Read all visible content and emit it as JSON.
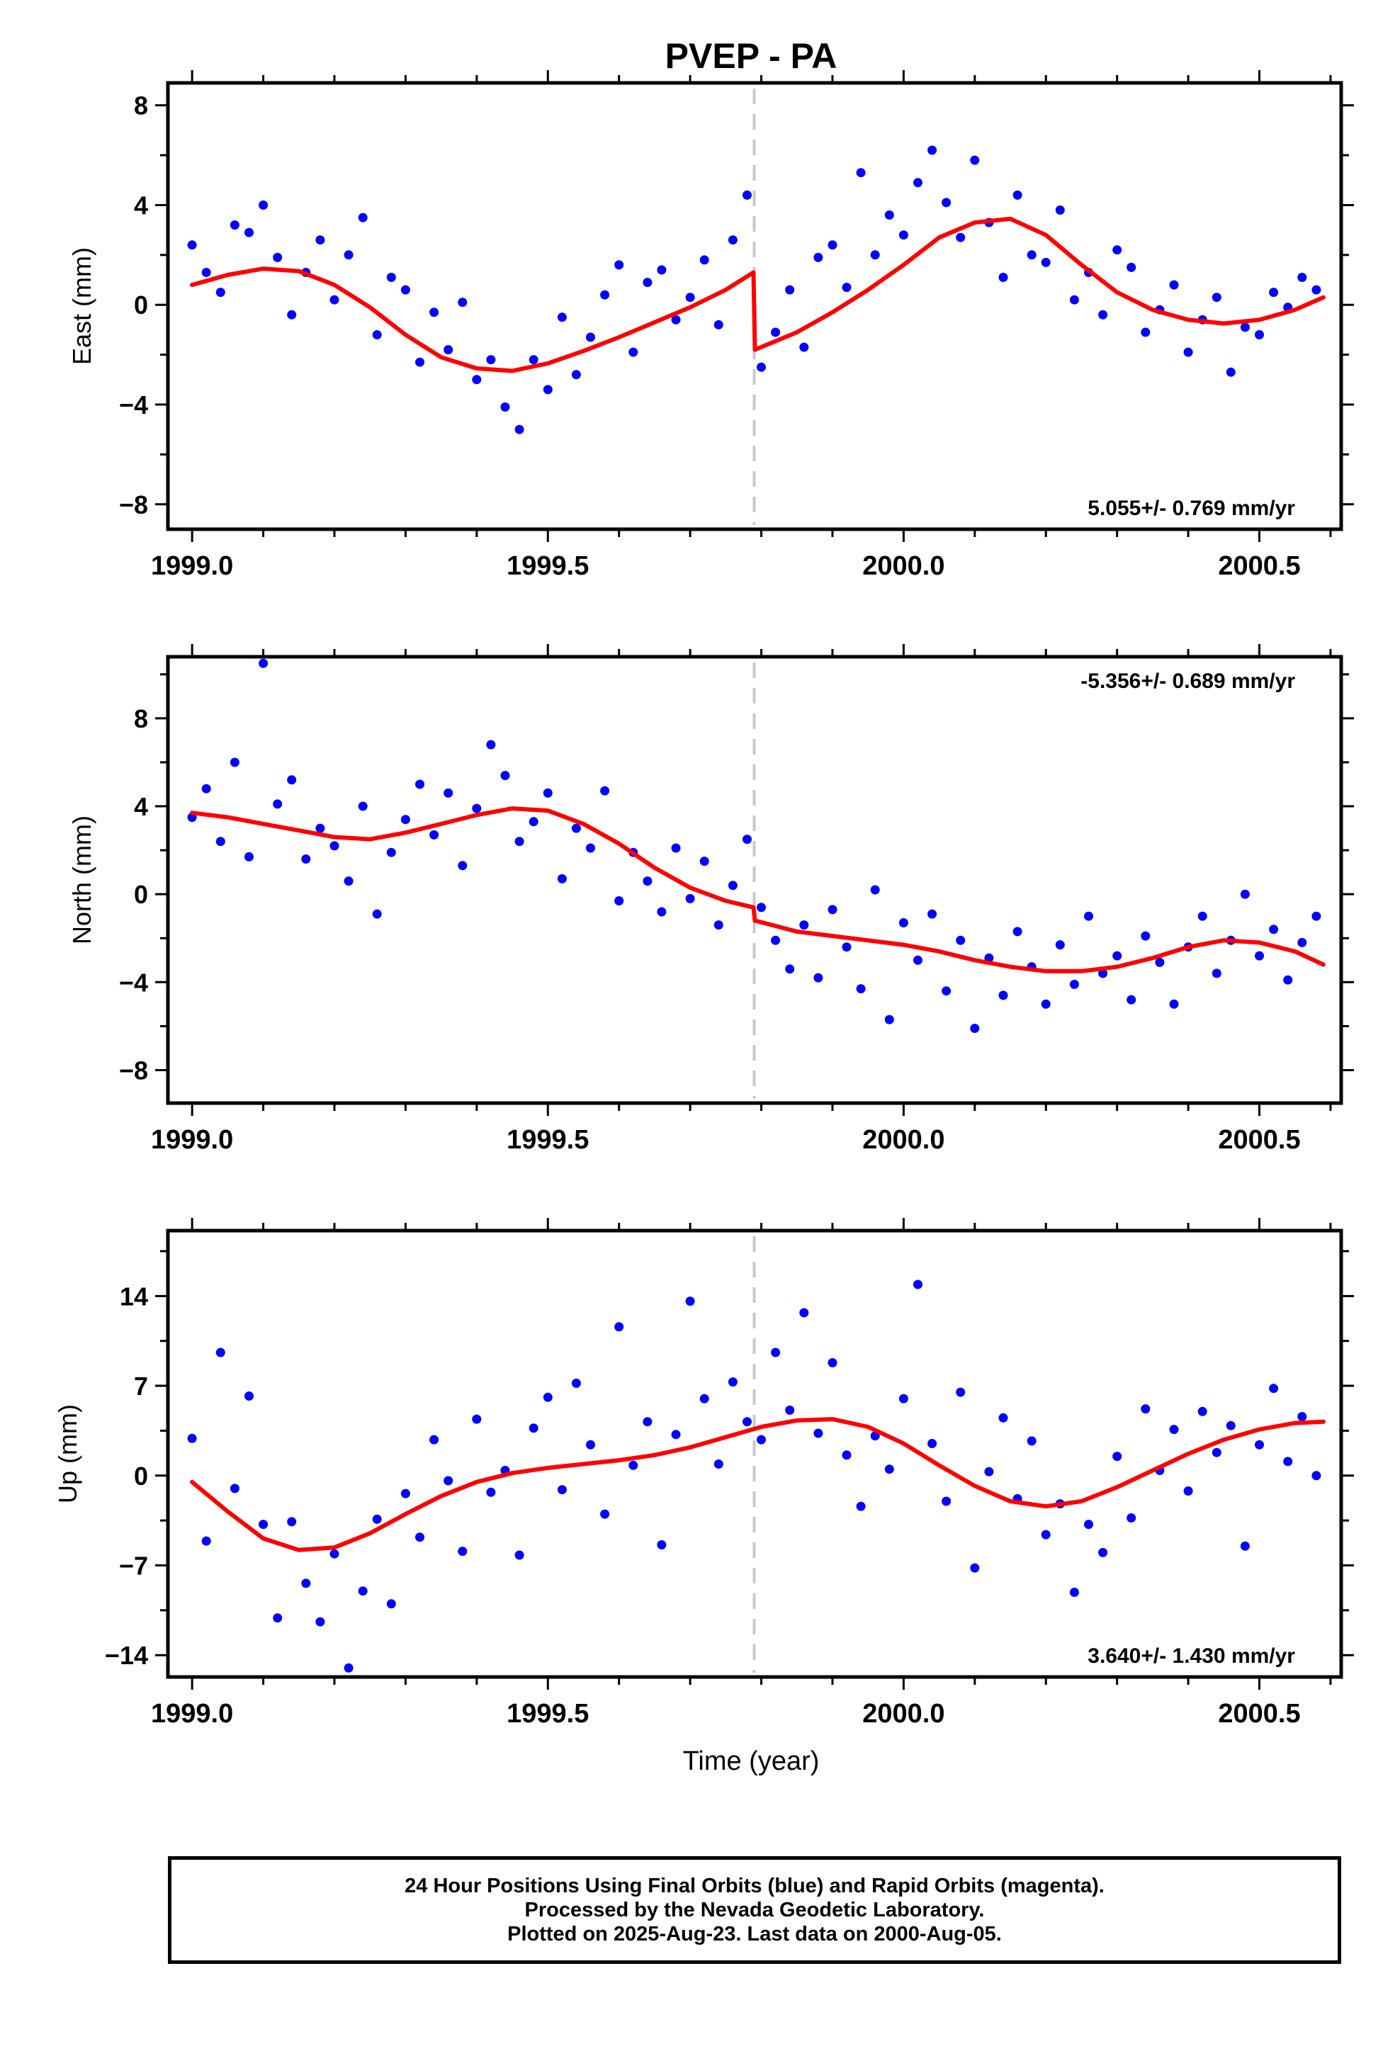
{
  "title": "PVEP - PA",
  "colors": {
    "data": "#0000ff",
    "model": "#ff0000",
    "offset_line": "#c8c8c8",
    "axis": "#000000"
  },
  "x_axis": {
    "label": "Time (year)",
    "range": [
      1998.966,
      2000.615
    ],
    "ticks": [
      1999.0,
      1999.5,
      2000.0,
      2000.5
    ],
    "tick_labels": [
      "1999.0",
      "1999.5",
      "2000.0",
      "2000.5"
    ]
  },
  "offset_epoch": 1999.79,
  "caption": {
    "line1": "24 Hour Positions Using Final Orbits (blue) and Rapid Orbits (magenta).",
    "line2": "Processed by the Nevada Geodetic Laboratory.",
    "line3": "Plotted on 2025-Aug-23. Last data on 2000-Aug-05."
  },
  "chart_data": [
    {
      "type": "scatter",
      "ylabel": "East (mm)",
      "ylim": [
        -9.0,
        8.9
      ],
      "yticks": [
        -8,
        -4,
        0,
        4,
        8
      ],
      "ytick_labels": [
        "−8",
        "−4",
        "0",
        "4",
        "8"
      ],
      "rate_label": "5.055+/- 0.769 mm/yr",
      "rate_position": "bottom-right",
      "grid": false,
      "series": [
        {
          "role": "data",
          "x": [
            1999.0,
            1999.02,
            1999.04,
            1999.06,
            1999.08,
            1999.1,
            1999.12,
            1999.14,
            1999.16,
            1999.18,
            1999.2,
            1999.22,
            1999.24,
            1999.26,
            1999.28,
            1999.3,
            1999.32,
            1999.34,
            1999.36,
            1999.38,
            1999.4,
            1999.42,
            1999.44,
            1999.46,
            1999.48,
            1999.5,
            1999.52,
            1999.54,
            1999.56,
            1999.58,
            1999.6,
            1999.62,
            1999.64,
            1999.66,
            1999.68,
            1999.7,
            1999.72,
            1999.74,
            1999.76,
            1999.78,
            1999.8,
            1999.82,
            1999.84,
            1999.86,
            1999.88,
            1999.9,
            1999.92,
            1999.94,
            1999.96,
            1999.98,
            2000.0,
            2000.02,
            2000.04,
            2000.06,
            2000.08,
            2000.1,
            2000.12,
            2000.14,
            2000.16,
            2000.18,
            2000.2,
            2000.22,
            2000.24,
            2000.26,
            2000.28,
            2000.3,
            2000.32,
            2000.34,
            2000.36,
            2000.38,
            2000.4,
            2000.42,
            2000.44,
            2000.46,
            2000.48,
            2000.5,
            2000.52,
            2000.54,
            2000.56,
            2000.58
          ],
          "y": [
            2.4,
            1.3,
            0.5,
            3.2,
            2.9,
            4.0,
            1.9,
            -0.4,
            1.3,
            2.6,
            0.2,
            2.0,
            3.5,
            -1.2,
            1.1,
            0.6,
            -2.3,
            -0.3,
            -1.8,
            0.1,
            -3.0,
            -2.2,
            -4.1,
            -5.0,
            -2.2,
            -3.4,
            -0.5,
            -2.8,
            -1.3,
            0.4,
            1.6,
            -1.9,
            0.9,
            1.4,
            -0.6,
            0.3,
            1.8,
            -0.8,
            2.6,
            4.4,
            -2.5,
            -1.1,
            0.6,
            -1.7,
            1.9,
            2.4,
            0.7,
            5.3,
            2.0,
            3.6,
            2.8,
            4.9,
            6.2,
            4.1,
            2.7,
            5.8,
            3.3,
            1.1,
            4.4,
            2.0,
            1.7,
            3.8,
            0.2,
            1.3,
            -0.4,
            2.2,
            1.5,
            -1.1,
            -0.2,
            0.8,
            -1.9,
            -0.6,
            0.3,
            -2.7,
            -0.9,
            -1.2,
            0.5,
            -0.1,
            1.1,
            0.6
          ]
        },
        {
          "role": "model",
          "x": [
            1999.0,
            1999.05,
            1999.1,
            1999.15,
            1999.2,
            1999.25,
            1999.3,
            1999.35,
            1999.4,
            1999.45,
            1999.5,
            1999.55,
            1999.6,
            1999.65,
            1999.7,
            1999.75,
            1999.789,
            1999.791,
            1999.85,
            1999.9,
            1999.95,
            2000.0,
            2000.05,
            2000.1,
            2000.15,
            2000.2,
            2000.25,
            2000.3,
            2000.35,
            2000.4,
            2000.45,
            2000.5,
            2000.55,
            2000.59
          ],
          "y": [
            0.8,
            1.2,
            1.45,
            1.35,
            0.8,
            -0.1,
            -1.2,
            -2.1,
            -2.55,
            -2.65,
            -2.35,
            -1.85,
            -1.3,
            -0.7,
            -0.1,
            0.6,
            1.3,
            -1.8,
            -1.1,
            -0.3,
            0.6,
            1.6,
            2.7,
            3.3,
            3.45,
            2.8,
            1.6,
            0.5,
            -0.2,
            -0.6,
            -0.75,
            -0.6,
            -0.2,
            0.3
          ]
        }
      ]
    },
    {
      "type": "scatter",
      "ylabel": "North (mm)",
      "ylim": [
        -9.5,
        10.8
      ],
      "yticks": [
        -8,
        -4,
        0,
        4,
        8
      ],
      "ytick_labels": [
        "−8",
        "−4",
        "0",
        "4",
        "8"
      ],
      "rate_label": "-5.356+/- 0.689 mm/yr",
      "rate_position": "top-right",
      "grid": false,
      "series": [
        {
          "role": "data",
          "x": [
            1999.0,
            1999.02,
            1999.04,
            1999.06,
            1999.08,
            1999.1,
            1999.12,
            1999.14,
            1999.16,
            1999.18,
            1999.2,
            1999.22,
            1999.24,
            1999.26,
            1999.28,
            1999.3,
            1999.32,
            1999.34,
            1999.36,
            1999.38,
            1999.4,
            1999.42,
            1999.44,
            1999.46,
            1999.48,
            1999.5,
            1999.52,
            1999.54,
            1999.56,
            1999.58,
            1999.6,
            1999.62,
            1999.64,
            1999.66,
            1999.68,
            1999.7,
            1999.72,
            1999.74,
            1999.76,
            1999.78,
            1999.8,
            1999.82,
            1999.84,
            1999.86,
            1999.88,
            1999.9,
            1999.92,
            1999.94,
            1999.96,
            1999.98,
            2000.0,
            2000.02,
            2000.04,
            2000.06,
            2000.08,
            2000.1,
            2000.12,
            2000.14,
            2000.16,
            2000.18,
            2000.2,
            2000.22,
            2000.24,
            2000.26,
            2000.28,
            2000.3,
            2000.32,
            2000.34,
            2000.36,
            2000.38,
            2000.4,
            2000.42,
            2000.44,
            2000.46,
            2000.48,
            2000.5,
            2000.52,
            2000.54,
            2000.56,
            2000.58
          ],
          "y": [
            3.5,
            4.8,
            2.4,
            6.0,
            1.7,
            10.5,
            4.1,
            5.2,
            1.6,
            3.0,
            2.2,
            0.6,
            4.0,
            -0.9,
            1.9,
            3.4,
            5.0,
            2.7,
            4.6,
            1.3,
            3.9,
            6.8,
            5.4,
            2.4,
            3.3,
            4.6,
            0.7,
            3.0,
            2.1,
            4.7,
            -0.3,
            1.9,
            0.6,
            -0.8,
            2.1,
            -0.2,
            1.5,
            -1.4,
            0.4,
            2.5,
            -0.6,
            -2.1,
            -3.4,
            -1.4,
            -3.8,
            -0.7,
            -2.4,
            -4.3,
            0.2,
            -5.7,
            -1.3,
            -3.0,
            -0.9,
            -4.4,
            -2.1,
            -6.1,
            -2.9,
            -4.6,
            -1.7,
            -3.3,
            -5.0,
            -2.3,
            -4.1,
            -1.0,
            -3.6,
            -2.8,
            -4.8,
            -1.9,
            -3.1,
            -5.0,
            -2.4,
            -1.0,
            -3.6,
            -2.1,
            0.0,
            -2.8,
            -1.6,
            -3.9,
            -2.2,
            -1.0
          ]
        },
        {
          "role": "model",
          "x": [
            1999.0,
            1999.05,
            1999.1,
            1999.15,
            1999.2,
            1999.25,
            1999.3,
            1999.35,
            1999.4,
            1999.45,
            1999.5,
            1999.55,
            1999.6,
            1999.65,
            1999.7,
            1999.75,
            1999.789,
            1999.791,
            1999.85,
            1999.9,
            1999.95,
            2000.0,
            2000.05,
            2000.1,
            2000.15,
            2000.2,
            2000.25,
            2000.3,
            2000.35,
            2000.4,
            2000.45,
            2000.5,
            2000.55,
            2000.59
          ],
          "y": [
            3.7,
            3.5,
            3.2,
            2.9,
            2.6,
            2.5,
            2.8,
            3.2,
            3.6,
            3.9,
            3.8,
            3.2,
            2.3,
            1.2,
            0.3,
            -0.3,
            -0.6,
            -1.2,
            -1.7,
            -1.9,
            -2.1,
            -2.3,
            -2.6,
            -3.0,
            -3.3,
            -3.5,
            -3.5,
            -3.3,
            -2.9,
            -2.4,
            -2.1,
            -2.2,
            -2.6,
            -3.2
          ]
        }
      ]
    },
    {
      "type": "scatter",
      "ylabel": "Up (mm)",
      "ylim": [
        -15.7,
        19.1
      ],
      "yticks": [
        -14,
        -7,
        0,
        7,
        14
      ],
      "ytick_labels": [
        "−14",
        "−7",
        "0",
        "7",
        "14"
      ],
      "rate_label": "3.640+/- 1.430 mm/yr",
      "rate_position": "bottom-right",
      "grid": false,
      "series": [
        {
          "role": "data",
          "x": [
            1999.0,
            1999.02,
            1999.04,
            1999.06,
            1999.08,
            1999.1,
            1999.12,
            1999.14,
            1999.16,
            1999.18,
            1999.2,
            1999.22,
            1999.24,
            1999.26,
            1999.28,
            1999.3,
            1999.32,
            1999.34,
            1999.36,
            1999.38,
            1999.4,
            1999.42,
            1999.44,
            1999.46,
            1999.48,
            1999.5,
            1999.52,
            1999.54,
            1999.56,
            1999.58,
            1999.6,
            1999.62,
            1999.64,
            1999.66,
            1999.68,
            1999.7,
            1999.72,
            1999.74,
            1999.76,
            1999.78,
            1999.8,
            1999.82,
            1999.84,
            1999.86,
            1999.88,
            1999.9,
            1999.92,
            1999.94,
            1999.96,
            1999.98,
            2000.0,
            2000.02,
            2000.04,
            2000.06,
            2000.08,
            2000.1,
            2000.12,
            2000.14,
            2000.16,
            2000.18,
            2000.2,
            2000.22,
            2000.24,
            2000.26,
            2000.28,
            2000.3,
            2000.32,
            2000.34,
            2000.36,
            2000.38,
            2000.4,
            2000.42,
            2000.44,
            2000.46,
            2000.48,
            2000.5,
            2000.52,
            2000.54,
            2000.56,
            2000.58
          ],
          "y": [
            2.9,
            -5.1,
            9.6,
            -1.0,
            6.2,
            -3.8,
            -11.1,
            -3.6,
            -8.4,
            -11.4,
            -6.1,
            -15.0,
            -9.0,
            -3.4,
            -10.0,
            -1.4,
            -4.8,
            2.8,
            -0.4,
            -5.9,
            4.4,
            -1.3,
            0.4,
            -6.2,
            3.7,
            6.1,
            -1.1,
            7.2,
            2.4,
            -3.0,
            11.6,
            0.8,
            4.2,
            -5.4,
            3.2,
            13.6,
            6.0,
            0.9,
            7.3,
            4.2,
            2.8,
            9.6,
            5.1,
            12.7,
            3.3,
            8.8,
            1.6,
            -2.4,
            3.1,
            0.5,
            6.0,
            14.9,
            2.5,
            -2.0,
            6.5,
            -7.2,
            0.3,
            4.5,
            -1.8,
            2.7,
            -4.6,
            -2.2,
            -9.1,
            -3.8,
            -6.0,
            1.5,
            -3.3,
            5.2,
            0.4,
            3.6,
            -1.2,
            5.0,
            1.8,
            3.9,
            -5.5,
            2.4,
            6.8,
            1.1,
            4.6,
            0.0
          ]
        },
        {
          "role": "model",
          "x": [
            1999.0,
            1999.05,
            1999.1,
            1999.15,
            1999.2,
            1999.25,
            1999.3,
            1999.35,
            1999.4,
            1999.45,
            1999.5,
            1999.55,
            1999.6,
            1999.65,
            1999.7,
            1999.75,
            1999.8,
            1999.85,
            1999.9,
            1999.95,
            2000.0,
            2000.05,
            2000.1,
            2000.15,
            2000.2,
            2000.25,
            2000.3,
            2000.35,
            2000.4,
            2000.45,
            2000.5,
            2000.55,
            2000.59
          ],
          "y": [
            -0.5,
            -2.8,
            -4.9,
            -5.8,
            -5.6,
            -4.5,
            -3.0,
            -1.6,
            -0.5,
            0.2,
            0.6,
            0.9,
            1.2,
            1.6,
            2.2,
            3.0,
            3.8,
            4.3,
            4.4,
            3.8,
            2.5,
            0.8,
            -0.8,
            -2.0,
            -2.4,
            -2.0,
            -0.9,
            0.4,
            1.7,
            2.8,
            3.6,
            4.1,
            4.2
          ]
        }
      ]
    }
  ]
}
